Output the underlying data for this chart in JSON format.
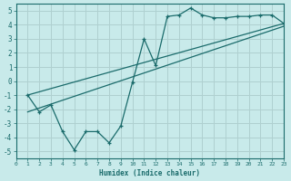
{
  "xlabel": "Humidex (Indice chaleur)",
  "background_color": "#c8eaea",
  "grid_color": "#afd0d0",
  "line_color": "#1a6b6b",
  "ylim": [
    -5.5,
    5.5
  ],
  "xlim": [
    0,
    23
  ],
  "yticks": [
    -5,
    -4,
    -3,
    -2,
    -1,
    0,
    1,
    2,
    3,
    4,
    5
  ],
  "xticks": [
    0,
    1,
    2,
    3,
    4,
    5,
    6,
    7,
    8,
    9,
    10,
    11,
    12,
    13,
    14,
    15,
    16,
    17,
    18,
    19,
    20,
    21,
    22,
    23
  ],
  "line1_x": [
    1,
    2,
    3,
    4,
    5,
    6,
    7,
    8,
    9,
    10,
    11,
    12,
    13,
    14,
    15,
    16,
    17,
    18,
    19,
    20,
    21,
    22,
    23
  ],
  "line1_y": [
    -1.0,
    -2.2,
    -1.7,
    -3.6,
    -4.9,
    -3.6,
    -3.6,
    -4.4,
    -3.2,
    -0.1,
    3.0,
    1.1,
    4.6,
    4.7,
    5.2,
    4.7,
    4.5,
    4.5,
    4.6,
    4.6,
    4.7,
    4.7,
    4.1
  ],
  "line2_x": [
    1,
    23
  ],
  "line2_y": [
    -1.0,
    4.1
  ],
  "line3_x": [
    1,
    23
  ],
  "line3_y": [
    -2.2,
    3.9
  ]
}
